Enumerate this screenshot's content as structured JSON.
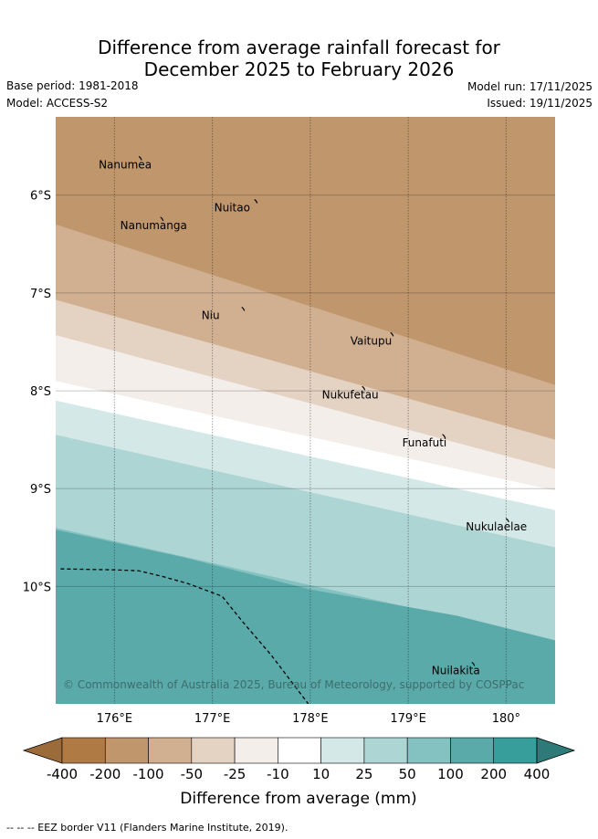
{
  "header": {
    "title_line1": "Difference from average rainfall forecast for",
    "title_line2": "December 2025 to February 2026",
    "base_period": "Base period: 1981-2018",
    "model": "Model: ACCESS-S2",
    "model_run": "Model run: 17/11/2025",
    "issued": "Issued: 19/11/2025"
  },
  "map": {
    "lon_range": [
      175.4,
      180.5
    ],
    "lat_range": [
      -11.2,
      -5.2
    ],
    "lat_ticks": [
      {
        "value": -6,
        "label": "6°S"
      },
      {
        "value": -7,
        "label": "7°S"
      },
      {
        "value": -8,
        "label": "8°S"
      },
      {
        "value": -9,
        "label": "9°S"
      },
      {
        "value": -10,
        "label": "10°S"
      }
    ],
    "lon_ticks": [
      {
        "value": 176,
        "label": "176°E"
      },
      {
        "value": 177,
        "label": "177°E"
      },
      {
        "value": 178,
        "label": "178°E"
      },
      {
        "value": 179,
        "label": "179°E"
      },
      {
        "value": 180,
        "label": "180°"
      }
    ],
    "bands": [
      {
        "color": "#5aaaaa",
        "west_lat": -11.2,
        "east_lat": -11.2
      },
      {
        "color": "#84c2c1",
        "west_lat": -9.4,
        "east_lat": -10.55
      },
      {
        "color": "#acd5d4",
        "west_lat": -8.45,
        "east_lat": -9.6
      },
      {
        "color": "#d4e8e7",
        "west_lat": -8.1,
        "east_lat": -9.22
      },
      {
        "color": "#ffffff",
        "west_lat": -7.9,
        "east_lat": -9.02
      },
      {
        "color": "#f3eeea",
        "west_lat": -7.43,
        "east_lat": -8.8
      },
      {
        "color": "#e4d2c2",
        "west_lat": -7.07,
        "east_lat": -8.5
      },
      {
        "color": "#d1b091",
        "west_lat": -6.3,
        "east_lat": -7.94
      },
      {
        "color": "#c0966c",
        "west_lat": -5.2,
        "east_lat": -5.2
      }
    ],
    "islands": [
      {
        "name": "Nanumea",
        "lon": 176.1,
        "lat": -5.68
      },
      {
        "name": "Nuitao",
        "lon": 177.28,
        "lat": -6.12
      },
      {
        "name": "Nanumanga",
        "lon": 176.32,
        "lat": -6.3
      },
      {
        "name": "Niu",
        "lon": 177.15,
        "lat": -7.22
      },
      {
        "name": "Vaitupu",
        "lon": 178.67,
        "lat": -7.48
      },
      {
        "name": "Nukufetau",
        "lon": 178.38,
        "lat": -8.03
      },
      {
        "name": "Funafuti",
        "lon": 179.2,
        "lat": -8.52
      },
      {
        "name": "Nukulaelae",
        "lon": 179.85,
        "lat": -9.38
      },
      {
        "name": "Nuilakita",
        "lon": 179.5,
        "lat": -10.85
      }
    ],
    "eez_border": [
      {
        "lon": 175.45,
        "lat": -9.82
      },
      {
        "lon": 176.0,
        "lat": -9.83
      },
      {
        "lon": 176.25,
        "lat": -9.84
      },
      {
        "lon": 176.5,
        "lat": -9.9
      },
      {
        "lon": 176.75,
        "lat": -9.97
      },
      {
        "lon": 177.1,
        "lat": -10.1
      },
      {
        "lon": 177.3,
        "lat": -10.35
      },
      {
        "lon": 177.6,
        "lat": -10.7
      },
      {
        "lon": 177.98,
        "lat": -11.2
      }
    ],
    "copyright": "© Commonwealth of Australia 2025, Bureau of Meteorology, supported by COSPPac"
  },
  "legend": {
    "colors": [
      "#b07a44",
      "#c0966c",
      "#d1b091",
      "#e4d2c2",
      "#f3eeea",
      "#ffffff",
      "#d4e8e7",
      "#acd5d4",
      "#84c2c1",
      "#5aaaaa",
      "#379e9c"
    ],
    "low_arrow_color": "#9c6b3a",
    "high_arrow_color": "#2e7a78",
    "tick_labels": [
      "-400",
      "-200",
      "-100",
      "-50",
      "-25",
      "-10",
      "10",
      "25",
      "50",
      "100",
      "200",
      "400"
    ],
    "title": "Difference from average (mm)"
  },
  "footer": {
    "eez_note": "--  --  -- EEZ border V11 (Flanders Marine Institute, 2019)."
  }
}
